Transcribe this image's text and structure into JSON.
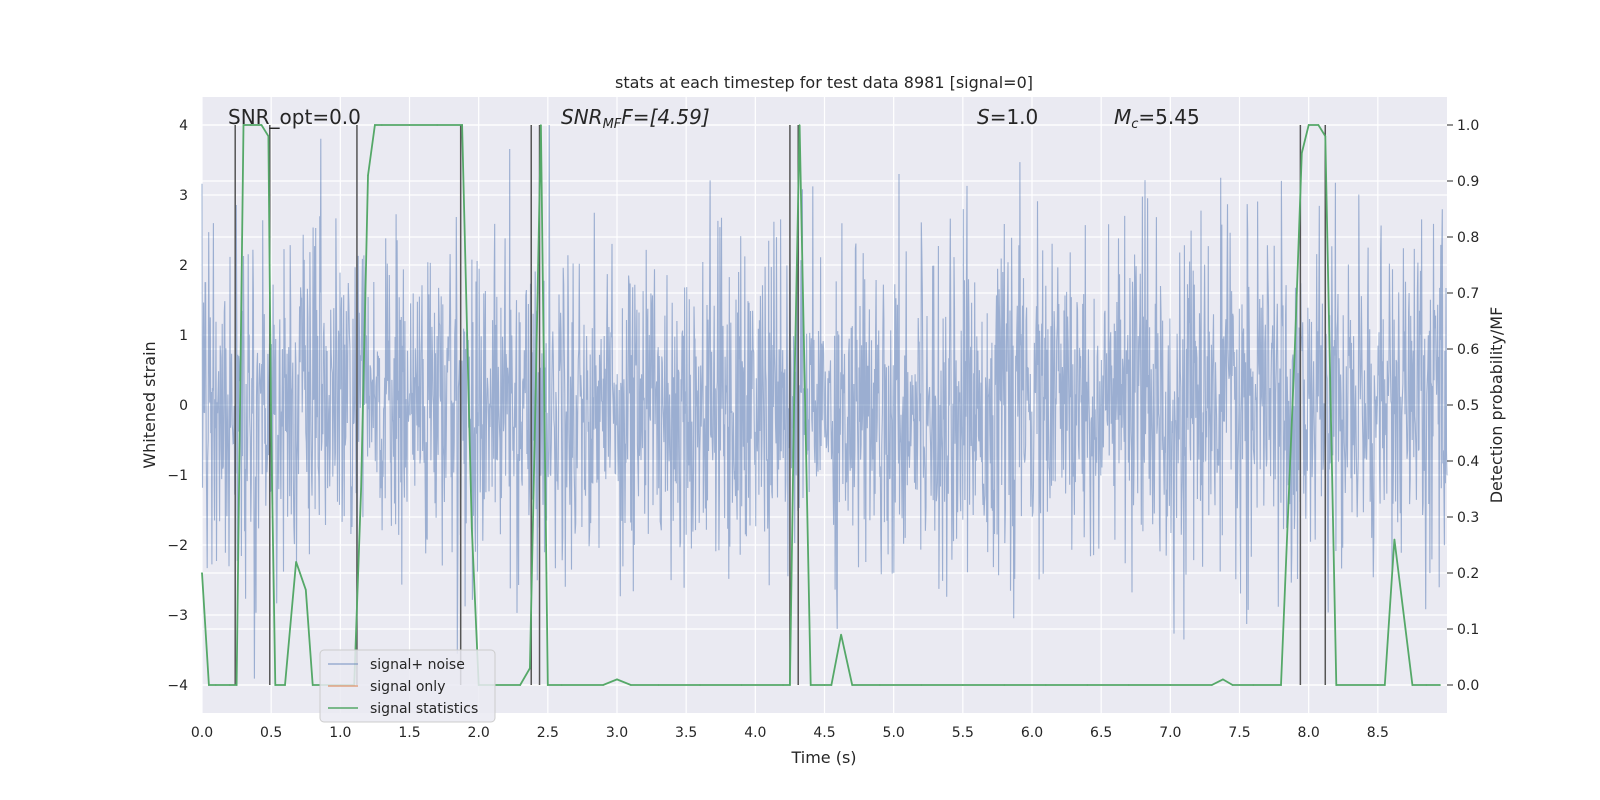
{
  "chart_data": {
    "type": "line",
    "title": "stats at each timestep for test data 8981 [signal=0]",
    "xlabel": "Time (s)",
    "ylabel_left": "Whitened strain",
    "ylabel_right": "Detection probability/MF",
    "xlim": [
      0.0,
      9.0
    ],
    "ylim_left": [
      -4.4,
      4.4
    ],
    "ylim_right": [
      -0.05,
      1.05
    ],
    "x_ticks": [
      0.0,
      0.5,
      1.0,
      1.5,
      2.0,
      2.5,
      3.0,
      3.5,
      4.0,
      4.5,
      5.0,
      5.5,
      6.0,
      6.5,
      7.0,
      7.5,
      8.0,
      8.5
    ],
    "x_tick_labels": [
      "0.0",
      "0.5",
      "1.0",
      "1.5",
      "2.0",
      "2.5",
      "3.0",
      "3.5",
      "4.0",
      "4.5",
      "5.0",
      "5.5",
      "6.0",
      "6.5",
      "7.0",
      "7.5",
      "8.0",
      "8.5"
    ],
    "y_left_ticks": [
      -4,
      -3,
      -2,
      -1,
      0,
      1,
      2,
      3,
      4
    ],
    "y_left_tick_labels": [
      "−4",
      "−3",
      "−2",
      "−1",
      "0",
      "1",
      "2",
      "3",
      "4"
    ],
    "y_right_ticks": [
      0.0,
      0.1,
      0.2,
      0.3,
      0.4,
      0.5,
      0.6,
      0.7,
      0.8,
      0.9,
      1.0
    ],
    "y_right_tick_labels": [
      "0.0",
      "0.1",
      "0.2",
      "0.3",
      "0.4",
      "0.5",
      "0.6",
      "0.7",
      "0.8",
      "0.9",
      "1.0"
    ],
    "annotations": {
      "snr_opt": "SNR_opt=0.0",
      "snr_mf_main": "SNR",
      "snr_mf_sub": "MF",
      "snr_mf_value": "F=[4.59]",
      "s_main": "S",
      "s_value": "=1.0",
      "mc_main": "M",
      "mc_sub": "c",
      "mc_value": "=5.45"
    },
    "series": [
      {
        "name": "signal+ noise",
        "color": "#4c72b0",
        "axis": "left",
        "description_values": "whitened strain noise, roughly symmetric around 0 with peaks up to about 4 and troughs down to about -4",
        "noise_seed": 8981,
        "noise_amplitude": 1.15
      },
      {
        "name": "signal only",
        "color": "#dd8452",
        "axis": "left",
        "x": [],
        "y": []
      },
      {
        "name": "signal statistics",
        "color": "#55a868",
        "axis": "right",
        "x": [
          0.0,
          0.05,
          0.1,
          0.2,
          0.25,
          0.3,
          0.35,
          0.43,
          0.48,
          0.5,
          0.53,
          0.6,
          0.68,
          0.75,
          0.8,
          0.85,
          1.0,
          1.1,
          1.15,
          1.2,
          1.25,
          1.3,
          1.5,
          1.7,
          1.88,
          1.95,
          2.0,
          2.1,
          2.3,
          2.37,
          2.41,
          2.45,
          2.5,
          2.6,
          2.9,
          3.0,
          3.1,
          3.3,
          3.6,
          3.9,
          4.2,
          4.25,
          4.28,
          4.32,
          4.4,
          4.5,
          4.55,
          4.62,
          4.7,
          4.9,
          5.2,
          5.5,
          5.8,
          6.1,
          6.4,
          6.7,
          7.0,
          7.3,
          7.38,
          7.45,
          7.6,
          7.8,
          7.9,
          7.95,
          8.0,
          8.07,
          8.12,
          8.2,
          8.5,
          8.55,
          8.62,
          8.7,
          8.75,
          8.85,
          8.95
        ],
        "y": [
          0.2,
          0.0,
          0.0,
          0.0,
          0.0,
          1.0,
          1.0,
          1.0,
          0.98,
          0.45,
          0.0,
          0.0,
          0.22,
          0.17,
          0.0,
          0.0,
          0.0,
          0.0,
          0.35,
          0.91,
          1.0,
          1.0,
          1.0,
          1.0,
          1.0,
          0.28,
          0.0,
          0.0,
          0.0,
          0.03,
          0.5,
          1.0,
          0.0,
          0.0,
          0.0,
          0.01,
          0.0,
          0.0,
          0.0,
          0.0,
          0.0,
          0.0,
          0.5,
          1.0,
          0.0,
          0.0,
          0.0,
          0.09,
          0.0,
          0.0,
          0.0,
          0.0,
          0.0,
          0.0,
          0.0,
          0.0,
          0.0,
          0.0,
          0.01,
          0.0,
          0.0,
          0.0,
          0.6,
          0.95,
          1.0,
          1.0,
          0.98,
          0.0,
          0.0,
          0.0,
          0.26,
          0.1,
          0.0,
          0.0,
          0.0
        ]
      }
    ],
    "vertical_lines": {
      "color": "#555555",
      "x": [
        0.24,
        0.49,
        1.12,
        1.87,
        2.38,
        2.44,
        4.25,
        4.31,
        7.94,
        8.12
      ]
    },
    "legend": {
      "location": "lower-left",
      "entries": [
        "signal+ noise",
        "signal only",
        "signal statistics"
      ]
    },
    "background": "#eaeaf2",
    "grid": true
  }
}
